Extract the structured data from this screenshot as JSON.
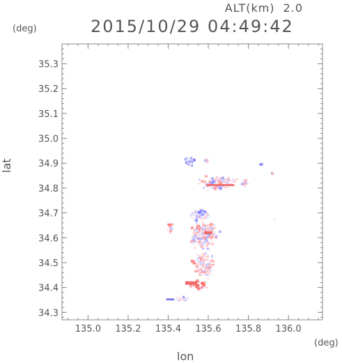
{
  "header": {
    "alt_label": "ALT(km)",
    "alt_value": "2.0",
    "timestamp": "2015/10/29 04:49:42"
  },
  "axes": {
    "lon_label": "lon",
    "lat_label": "lat",
    "deg_top": "(deg)",
    "deg_right": "(deg)",
    "x_ticks": [
      "135.0",
      "135.2",
      "135.4",
      "135.6",
      "135.8",
      "136.0"
    ],
    "y_ticks": [
      "35.3",
      "35.2",
      "35.1",
      "35.0",
      "34.9",
      "34.8",
      "34.7",
      "34.6",
      "34.5",
      "34.4",
      "34.3"
    ],
    "x_range": [
      134.87,
      136.17
    ],
    "y_range": [
      34.27,
      35.38
    ]
  },
  "colors": {
    "positive": "#f06a6a",
    "negative": "#7a7af0",
    "frame": "#888888"
  },
  "field": {
    "clusters": [
      {
        "lon": 135.505,
        "lat": 34.905,
        "r_lon": 0.03,
        "r_lat": 0.018,
        "n": 40,
        "bias": -0.8
      },
      {
        "lon": 135.59,
        "lat": 34.91,
        "r_lon": 0.008,
        "r_lat": 0.012,
        "n": 8,
        "bias": 0.2
      },
      {
        "lon": 135.65,
        "lat": 34.82,
        "r_lon": 0.12,
        "r_lat": 0.035,
        "n": 120,
        "bias": 0.0
      },
      {
        "lon": 135.86,
        "lat": 34.895,
        "r_lon": 0.01,
        "r_lat": 0.01,
        "n": 5,
        "bias": -0.6
      },
      {
        "lon": 135.92,
        "lat": 34.86,
        "r_lon": 0.006,
        "r_lat": 0.01,
        "n": 3,
        "bias": 0.0
      },
      {
        "lon": 135.56,
        "lat": 34.69,
        "r_lon": 0.06,
        "r_lat": 0.03,
        "n": 70,
        "bias": -0.4
      },
      {
        "lon": 135.58,
        "lat": 34.61,
        "r_lon": 0.09,
        "r_lat": 0.07,
        "n": 300,
        "bias": 0.15
      },
      {
        "lon": 135.58,
        "lat": 34.49,
        "r_lon": 0.07,
        "r_lat": 0.06,
        "n": 160,
        "bias": 0.3
      },
      {
        "lon": 135.55,
        "lat": 34.41,
        "r_lon": 0.05,
        "r_lat": 0.025,
        "n": 70,
        "bias": 0.8
      },
      {
        "lon": 135.47,
        "lat": 34.355,
        "r_lon": 0.05,
        "r_lat": 0.01,
        "n": 25,
        "bias": -0.5
      },
      {
        "lon": 135.78,
        "lat": 34.82,
        "r_lon": 0.03,
        "r_lat": 0.02,
        "n": 15,
        "bias": 0.0
      },
      {
        "lon": 135.93,
        "lat": 34.675,
        "r_lon": 0.01,
        "r_lat": 0.006,
        "n": 3,
        "bias": 0.0
      },
      {
        "lon": 135.41,
        "lat": 34.64,
        "r_lon": 0.02,
        "r_lat": 0.03,
        "n": 12,
        "bias": 0.4
      }
    ],
    "strong_cells": [
      {
        "lon": 135.66,
        "lat": 34.812,
        "w": 0.14,
        "h": 0.008,
        "sign": 1
      },
      {
        "lon": 135.515,
        "lat": 34.418,
        "w": 0.06,
        "h": 0.014,
        "sign": 1
      },
      {
        "lon": 135.545,
        "lat": 34.408,
        "w": 0.02,
        "h": 0.01,
        "sign": 1
      },
      {
        "lon": 135.6,
        "lat": 34.62,
        "w": 0.04,
        "h": 0.012,
        "sign": 1
      },
      {
        "lon": 135.41,
        "lat": 34.352,
        "w": 0.04,
        "h": 0.008,
        "sign": -1
      }
    ]
  }
}
